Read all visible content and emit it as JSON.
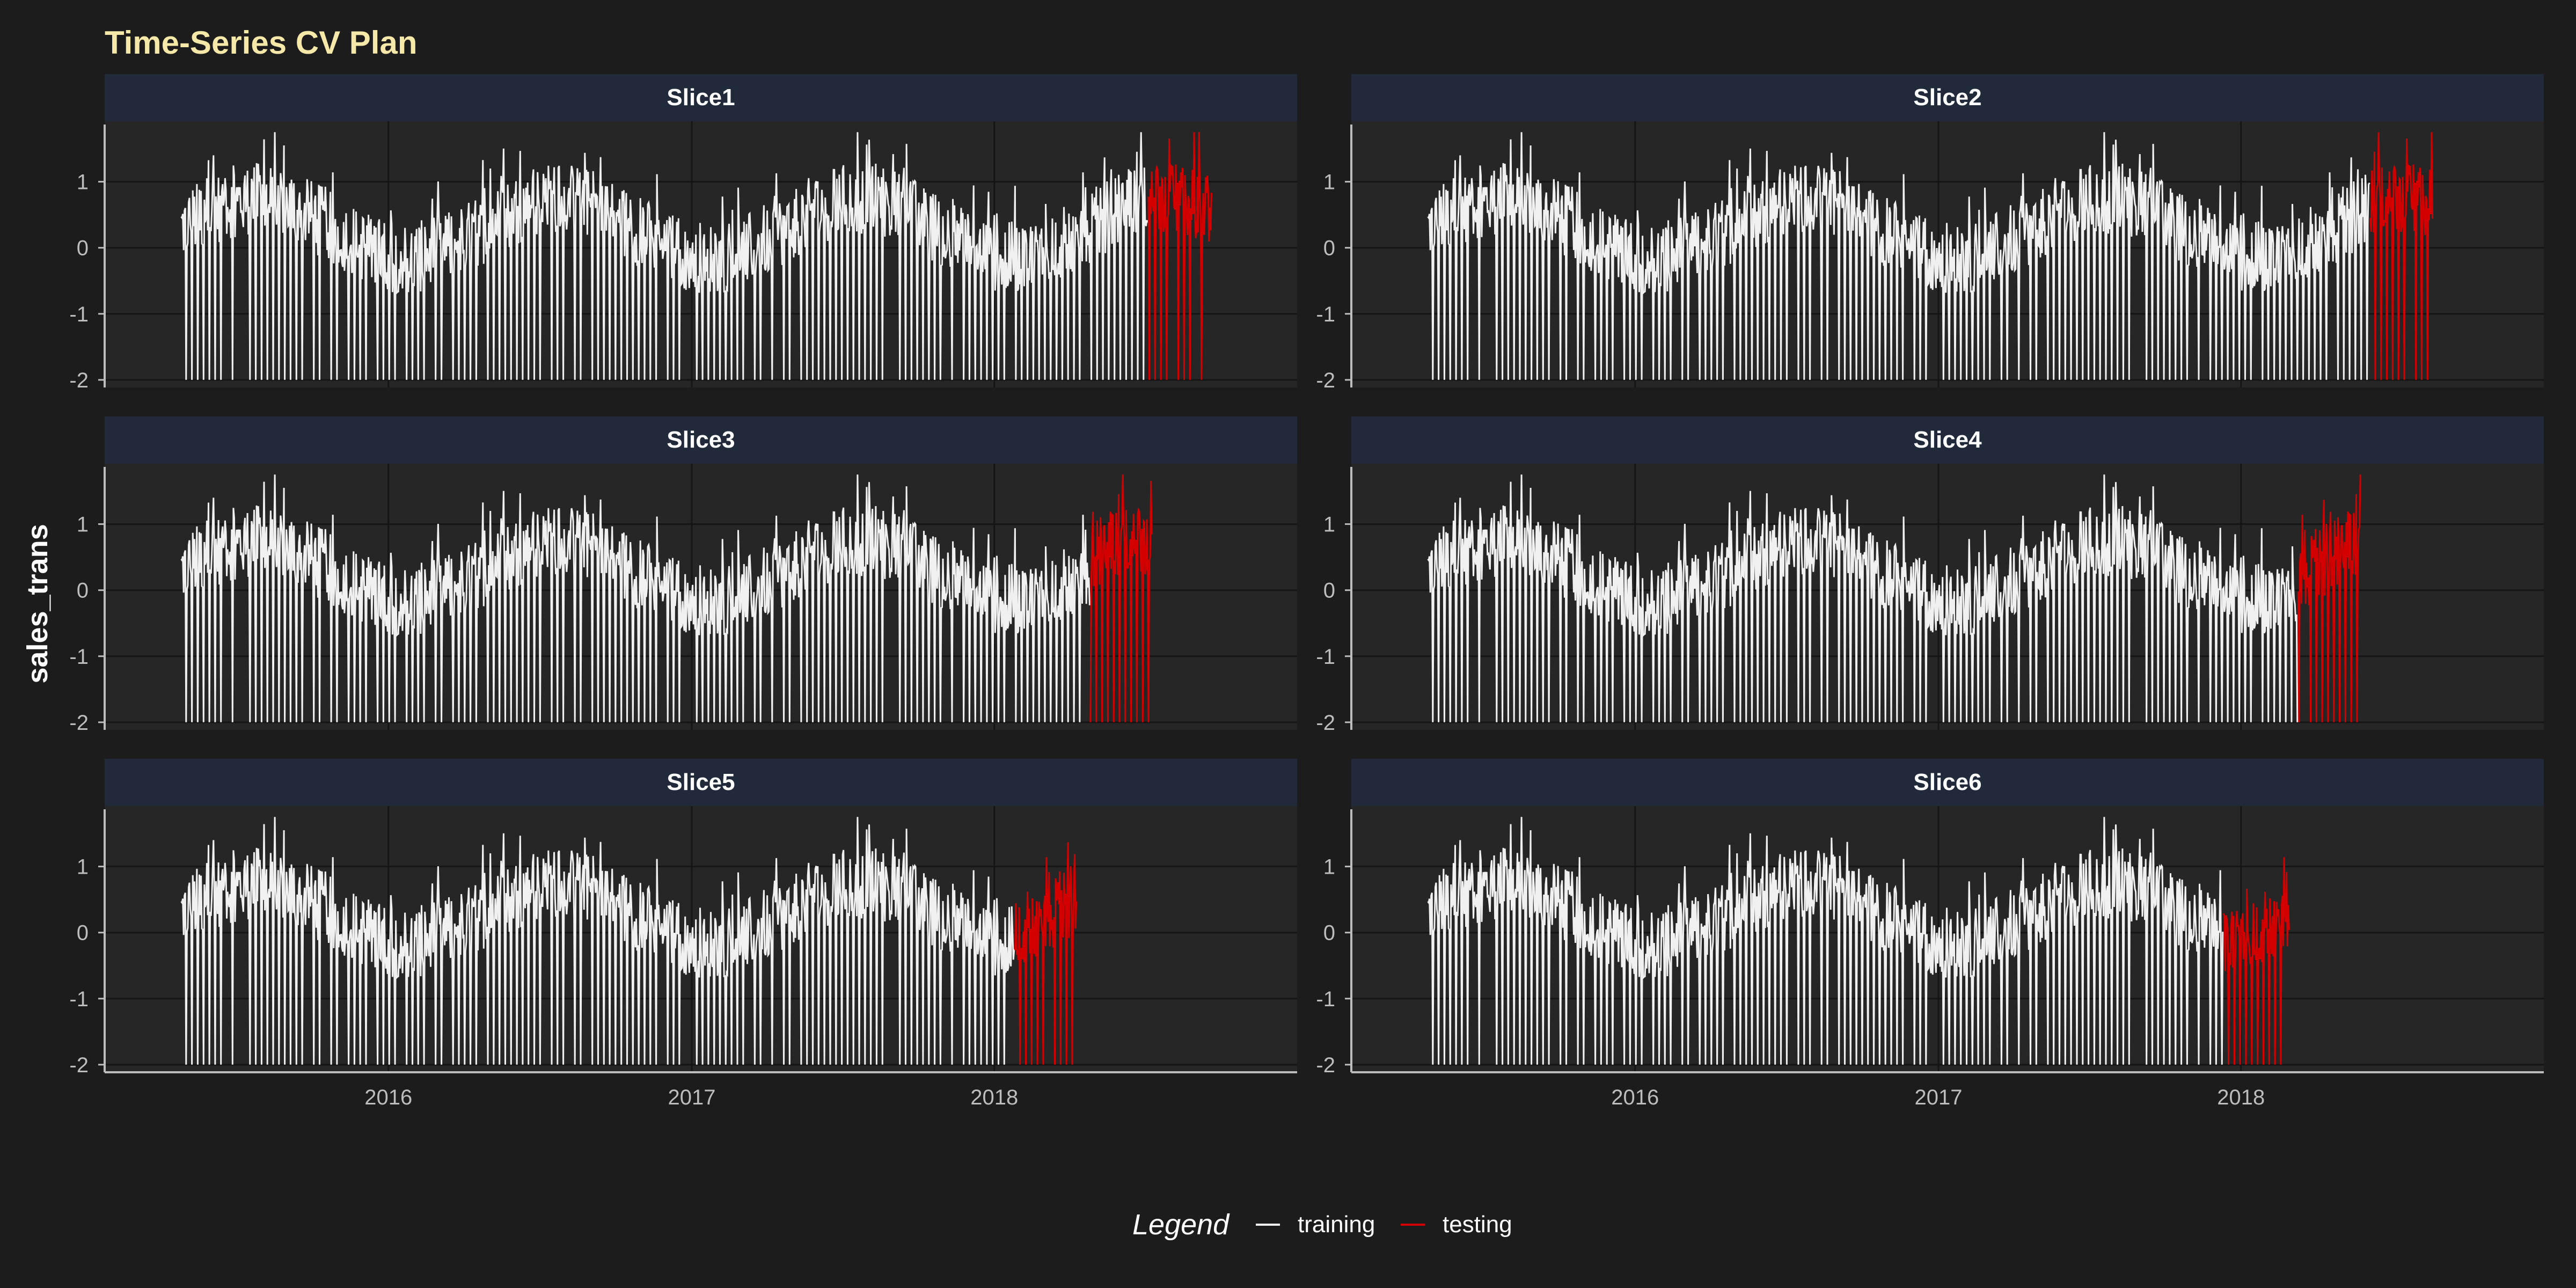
{
  "chart_data": {
    "type": "line",
    "title": "Time-Series CV Plan",
    "ylabel": "sales_trans",
    "xlabel": "",
    "x_ticks": [
      "2016",
      "2017",
      "2018"
    ],
    "y_ticks": [
      "1",
      "0",
      "-1",
      "-2"
    ],
    "ylim": [
      -2.05,
      1.85
    ],
    "xlim": [
      "2015-01-25",
      "2018-12-31"
    ],
    "grid": true,
    "legend": {
      "title": "Legend",
      "placement": "bottom",
      "entries": [
        {
          "label": "training",
          "color": "#f0f0f0"
        },
        {
          "label": "testing",
          "color": "#d40000"
        }
      ]
    },
    "colors": {
      "training": "#f0f0f0",
      "testing": "#d40000",
      "background": "#1c1c1c",
      "panel": "#262626",
      "strip": "#212a3a",
      "title": "#f5e8a8"
    },
    "series_note_start": "2015-04-26",
    "panels": [
      {
        "label": "Slice1",
        "train": [
          "2015-04-26",
          "2018-07-05"
        ],
        "test": [
          "2018-07-06",
          "2018-09-20"
        ]
      },
      {
        "label": "Slice2",
        "train": [
          "2015-04-26",
          "2018-06-05"
        ],
        "test": [
          "2018-06-06",
          "2018-08-20"
        ]
      },
      {
        "label": "Slice3",
        "train": [
          "2015-04-26",
          "2018-04-26"
        ],
        "test": [
          "2018-04-27",
          "2018-07-10"
        ]
      },
      {
        "label": "Slice4",
        "train": [
          "2015-04-26",
          "2018-03-10"
        ],
        "test": [
          "2018-03-11",
          "2018-05-25"
        ]
      },
      {
        "label": "Slice5",
        "train": [
          "2015-04-26",
          "2018-01-25"
        ],
        "test": [
          "2018-01-26",
          "2018-04-10"
        ]
      },
      {
        "label": "Slice6",
        "train": [
          "2015-04-26",
          "2017-12-10"
        ],
        "test": [
          "2017-12-11",
          "2018-02-28"
        ]
      }
    ]
  }
}
